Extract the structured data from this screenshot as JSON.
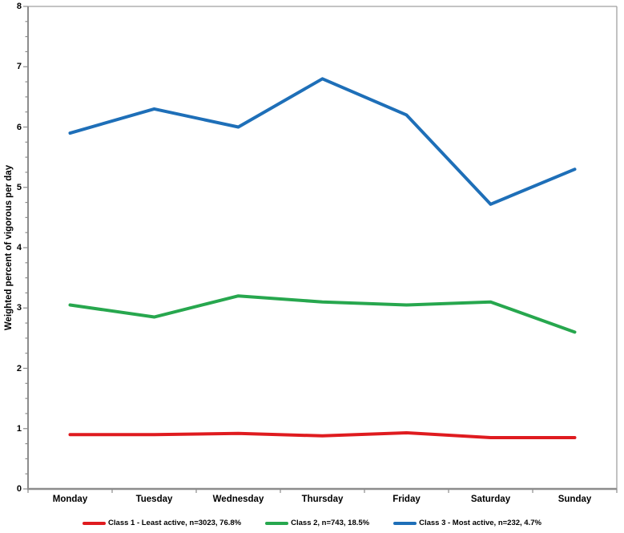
{
  "chart_data": {
    "type": "line",
    "title": "",
    "xlabel": "",
    "ylabel": "Weighted percent of vigorous per day",
    "ylim": [
      0,
      8
    ],
    "y_major_step": 1,
    "y_minor_step": 0.25,
    "grid": false,
    "legend_position": "bottom",
    "categories": [
      "Monday",
      "Tuesday",
      "Wednesday",
      "Thursday",
      "Friday",
      "Saturday",
      "Sunday"
    ],
    "series": [
      {
        "name": "Class 1 - Least active, n=3023, 76.8%",
        "color": "#DF1B1F",
        "values": [
          0.9,
          0.9,
          0.92,
          0.88,
          0.93,
          0.85,
          0.85
        ]
      },
      {
        "name": "Class 2, n=743, 18.5%",
        "color": "#27A74E",
        "values": [
          3.05,
          2.85,
          3.2,
          3.1,
          3.05,
          3.1,
          2.6
        ]
      },
      {
        "name": "Class 3 - Most active, n=232, 4.7%",
        "color": "#1E6FB8",
        "values": [
          5.9,
          6.3,
          6.0,
          6.8,
          6.2,
          4.72,
          5.3
        ]
      }
    ],
    "axis_color": "#8C8C8C",
    "border_color": "#A0A0A0"
  }
}
